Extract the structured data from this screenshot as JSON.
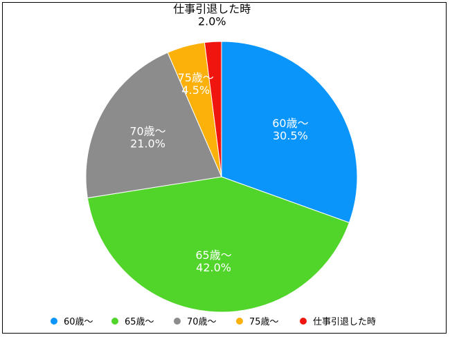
{
  "chart_data": {
    "type": "pie",
    "title": "",
    "categories": [
      "60歳〜",
      "65歳〜",
      "70歳〜",
      "75歳〜",
      "仕事引退した時"
    ],
    "values": [
      30.5,
      42.0,
      21.0,
      4.5,
      2.0
    ],
    "value_labels": [
      "30.5%",
      "42.0%",
      "21.0%",
      "4.5%",
      "2.0%"
    ],
    "colors": [
      "#0a95fb",
      "#52d52b",
      "#8c8c8c",
      "#fbb00a",
      "#f0150e"
    ],
    "legend_position": "bottom"
  }
}
